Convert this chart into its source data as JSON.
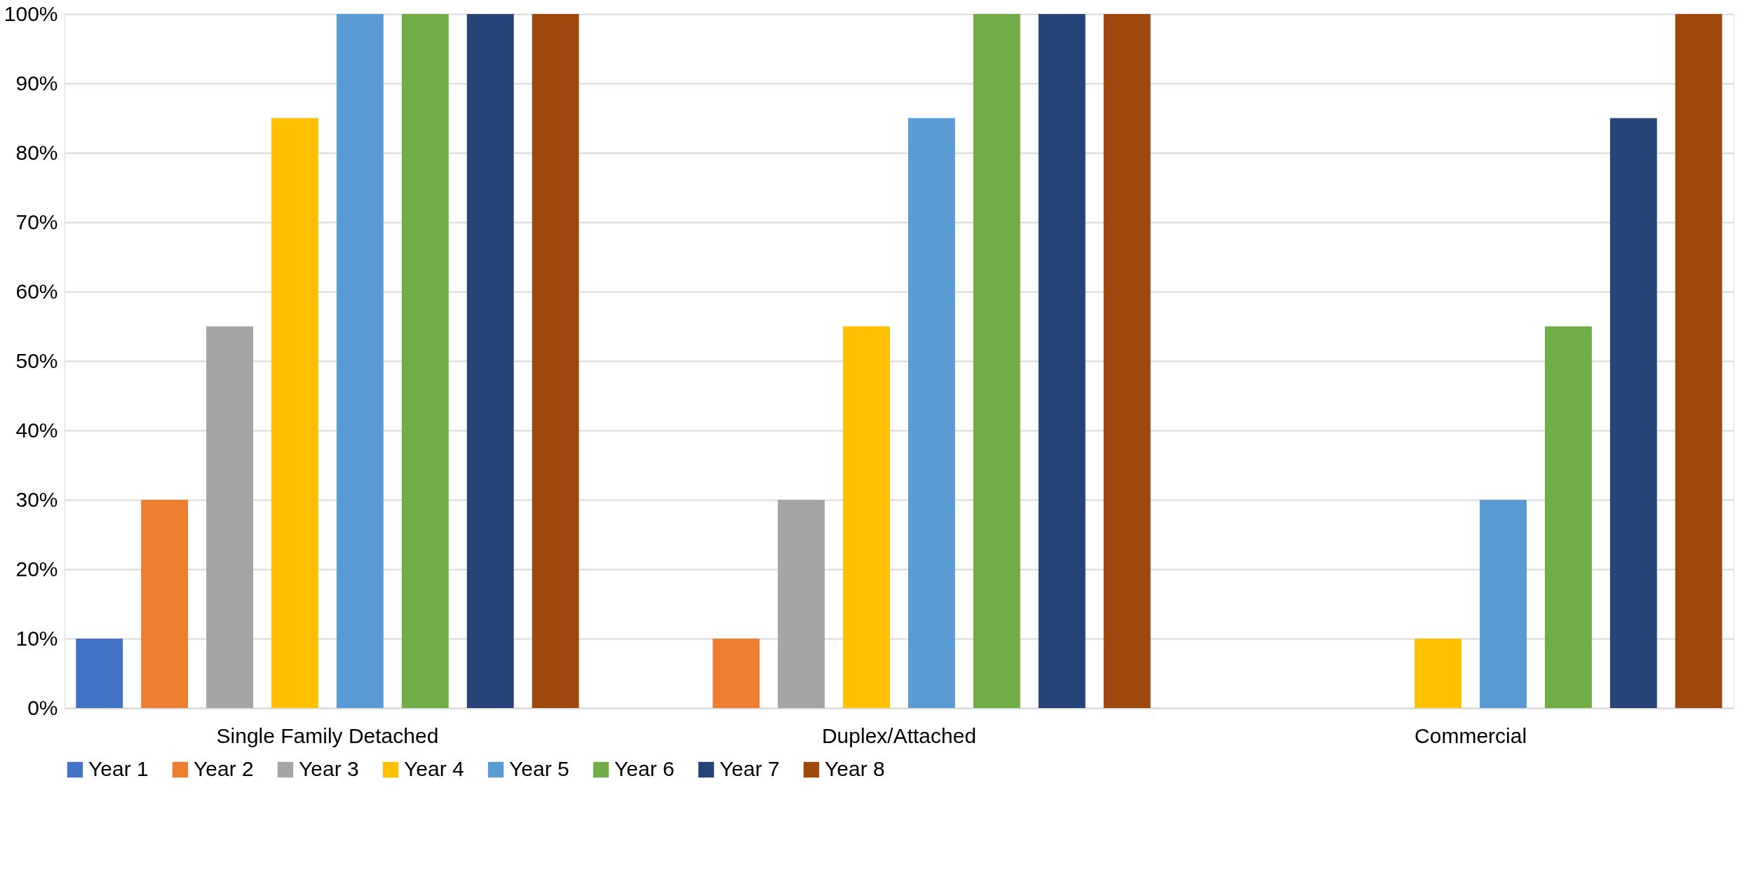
{
  "chart_data": {
    "type": "bar",
    "categories": [
      "Single Family Detached",
      "Duplex/Attached",
      "Commercial"
    ],
    "series": [
      {
        "name": "Year 1",
        "color": "#4472c4",
        "values": [
          10,
          0,
          0
        ]
      },
      {
        "name": "Year 2",
        "color": "#ed7d31",
        "values": [
          30,
          10,
          0
        ]
      },
      {
        "name": "Year 3",
        "color": "#a5a5a5",
        "values": [
          55,
          30,
          0
        ]
      },
      {
        "name": "Year 4",
        "color": "#ffc000",
        "values": [
          85,
          55,
          10
        ]
      },
      {
        "name": "Year 5",
        "color": "#5b9bd5",
        "values": [
          100,
          85,
          30
        ]
      },
      {
        "name": "Year 6",
        "color": "#70ad47",
        "values": [
          100,
          100,
          55
        ]
      },
      {
        "name": "Year 7",
        "color": "#264478",
        "values": [
          100,
          100,
          85
        ]
      },
      {
        "name": "Year 8",
        "color": "#9e480e",
        "values": [
          100,
          100,
          100
        ]
      }
    ],
    "ylim": [
      0,
      100
    ],
    "yticks": [
      {
        "value": 0,
        "label": "0%"
      },
      {
        "value": 10,
        "label": "10%"
      },
      {
        "value": 20,
        "label": "20%"
      },
      {
        "value": 30,
        "label": "30%"
      },
      {
        "value": 40,
        "label": "40%"
      },
      {
        "value": 50,
        "label": "50%"
      },
      {
        "value": 60,
        "label": "60%"
      },
      {
        "value": 70,
        "label": "70%"
      },
      {
        "value": 80,
        "label": "80%"
      },
      {
        "value": 90,
        "label": "90%"
      },
      {
        "value": 100,
        "label": "100%"
      }
    ],
    "grid": "y",
    "legend": "bottom"
  }
}
